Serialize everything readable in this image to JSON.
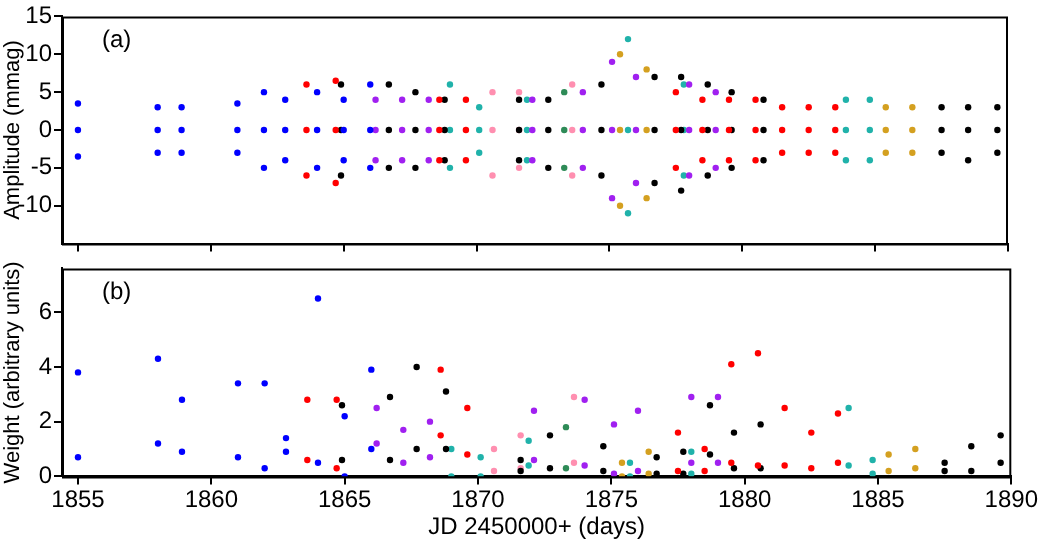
{
  "chart_data": [
    {
      "type": "scatter",
      "ylabel": "Amplitude (mmag)",
      "annotations": [
        "(a)"
      ],
      "xlim": [
        1854.4,
        1890
      ],
      "xticks": [
        1855,
        1860,
        1865,
        1870,
        1875,
        1880,
        1885,
        1890
      ],
      "ylim": [
        -15,
        15
      ],
      "yticks": [
        -10,
        -5,
        0,
        5,
        10,
        15
      ],
      "tick_labels": "y",
      "grid": false,
      "legend": false,
      "series": [
        {
          "color": "#0000ff",
          "x": [
            1855.0,
            1855.0,
            1855.0,
            1858.0,
            1858.0,
            1858.0,
            1858.9,
            1858.9,
            1858.9,
            1861.0,
            1861.0,
            1861.0,
            1862.0,
            1862.0,
            1862.0,
            1862.8,
            1862.8,
            1862.8,
            1864.0,
            1864.0,
            1864.0,
            1865.0,
            1865.0,
            1865.0,
            1866.0,
            1866.0,
            1866.0
          ],
          "values": [
            3.5,
            0,
            -3.5,
            3,
            0,
            -3,
            3,
            0,
            -3,
            3.5,
            0,
            -3,
            5,
            0,
            -5,
            4,
            0,
            -4,
            5,
            0,
            -5,
            4,
            0,
            -4,
            6,
            0,
            -5
          ]
        },
        {
          "color": "#ff0000",
          "x": [
            1863.6,
            1863.6,
            1863.6,
            1864.7,
            1864.7,
            1864.7,
            1868.6,
            1868.6,
            1868.6,
            1869.6,
            1869.6,
            1869.6,
            1877.5,
            1877.5,
            1877.5,
            1878.5,
            1878.5,
            1878.5,
            1879.5,
            1879.5,
            1879.5,
            1880.5,
            1880.5,
            1880.5,
            1881.5,
            1881.5,
            1881.5,
            1882.5,
            1882.5,
            1882.5,
            1883.5,
            1883.5,
            1883.5
          ],
          "values": [
            6,
            0,
            -6,
            6.5,
            0,
            -7,
            4,
            0,
            -4,
            4,
            0,
            -4,
            5,
            0,
            -5,
            4,
            0,
            -4,
            4,
            0,
            -4,
            4,
            0,
            -4,
            3,
            0,
            -3,
            3,
            0,
            -3,
            3,
            0,
            -3
          ]
        },
        {
          "color": "#000000",
          "x": [
            1864.9,
            1864.9,
            1864.9,
            1866.7,
            1866.7,
            1866.7,
            1867.7,
            1867.7,
            1867.7,
            1868.8,
            1868.8,
            1868.8,
            1871.6,
            1871.6,
            1871.6,
            1872.7,
            1872.7,
            1872.7,
            1874.7,
            1874.7,
            1874.7,
            1876.7,
            1876.7,
            1876.7,
            1877.7,
            1877.7,
            1877.7,
            1878.7,
            1878.7,
            1878.7,
            1879.6,
            1879.6,
            1879.6,
            1880.8,
            1880.8,
            1880.8,
            1887.5,
            1887.5,
            1887.5,
            1888.5,
            1888.5,
            1888.5,
            1889.6,
            1889.6,
            1889.6
          ],
          "values": [
            6,
            0,
            -6,
            6,
            0,
            -5,
            5,
            0,
            -5,
            4,
            0,
            -4,
            4,
            0,
            -4,
            4,
            0,
            -5,
            6,
            0,
            -6,
            7,
            0,
            -7,
            7,
            0,
            -8,
            6,
            0,
            -6,
            5,
            0,
            -5,
            4,
            0,
            -4,
            3,
            0,
            -3,
            3,
            0,
            -4,
            3,
            0,
            -3
          ]
        },
        {
          "color": "#a020f0",
          "x": [
            1866.2,
            1866.2,
            1866.2,
            1867.2,
            1867.2,
            1867.2,
            1868.2,
            1868.2,
            1868.2,
            1872.1,
            1872.1,
            1872.1,
            1874.0,
            1874.0,
            1874.0,
            1875.1,
            1875.1,
            1875.1,
            1876.0,
            1876.0,
            1876.0,
            1878.0,
            1878.0,
            1878.0,
            1879.0,
            1879.0,
            1879.0
          ],
          "values": [
            4,
            0,
            -4,
            4,
            0,
            -4,
            4,
            0,
            -4,
            4,
            0,
            -4,
            5,
            0,
            -5,
            9,
            0,
            -9,
            7,
            0,
            -7,
            6,
            0,
            -6,
            5,
            0,
            -5
          ]
        },
        {
          "color": "#20b2aa",
          "x": [
            1869.0,
            1869.0,
            1869.0,
            1870.1,
            1870.1,
            1870.1,
            1871.9,
            1871.9,
            1871.9,
            1875.7,
            1875.7,
            1875.7,
            1877.8,
            1877.8,
            1877.8,
            1883.9,
            1883.9,
            1883.9,
            1884.8,
            1884.8,
            1884.8
          ],
          "values": [
            6,
            0,
            -5,
            3,
            0,
            -3,
            4,
            0,
            -4,
            12,
            0,
            -11,
            6,
            0,
            -6,
            4,
            0,
            -4,
            4,
            0,
            -4
          ]
        },
        {
          "color": "#ff8fb0",
          "x": [
            1870.6,
            1870.6,
            1870.6,
            1871.6,
            1871.6,
            1871.6,
            1873.6,
            1873.6,
            1873.6
          ],
          "values": [
            5,
            0,
            -6,
            5,
            0,
            -5,
            6,
            0,
            -6
          ]
        },
        {
          "color": "#2e8b57",
          "x": [
            1873.3,
            1873.3,
            1873.3
          ],
          "values": [
            5,
            0,
            -5
          ]
        },
        {
          "color": "#d4a020",
          "x": [
            1875.4,
            1875.4,
            1875.4,
            1876.4,
            1876.4,
            1876.4,
            1885.4,
            1885.4,
            1885.4,
            1886.4,
            1886.4,
            1886.4
          ],
          "values": [
            10,
            0,
            -10,
            8,
            0,
            -9,
            3,
            0,
            -3,
            3,
            0,
            -3
          ]
        }
      ]
    },
    {
      "type": "scatter",
      "xlabel": "JD 2450000+ (days)",
      "ylabel": "Weight (arbitrary units)",
      "annotations": [
        "(b)"
      ],
      "xlim": [
        1854.4,
        1890
      ],
      "xticks": [
        1855,
        1860,
        1865,
        1870,
        1875,
        1880,
        1885,
        1890
      ],
      "ylim": [
        0,
        7.6
      ],
      "yticks": [
        0,
        2,
        4,
        6
      ],
      "grid": false,
      "legend": false,
      "series": [
        {
          "color": "#0000ff",
          "x": [
            1855.0,
            1855.0,
            1858.0,
            1858.0,
            1858.9,
            1858.9,
            1861.0,
            1861.0,
            1862.0,
            1862.0,
            1862.8,
            1862.8,
            1864.0,
            1864.0,
            1865.0,
            1865.0,
            1866.0,
            1866.0
          ],
          "values": [
            3.8,
            0.7,
            4.3,
            1.2,
            2.8,
            0.9,
            3.4,
            0.7,
            3.4,
            0.3,
            1.4,
            0.9,
            6.5,
            0.5,
            2.2,
            0,
            3.9,
            1.0
          ]
        },
        {
          "color": "#ff0000",
          "x": [
            1863.6,
            1863.6,
            1864.7,
            1864.7,
            1868.6,
            1868.6,
            1869.6,
            1869.6,
            1877.5,
            1877.5,
            1878.5,
            1878.5,
            1879.5,
            1879.5,
            1880.5,
            1880.5,
            1881.5,
            1881.5,
            1882.5,
            1882.5,
            1883.5,
            1883.5
          ],
          "values": [
            2.8,
            0.6,
            2.8,
            0.3,
            3.9,
            1.5,
            2.5,
            0.8,
            1.6,
            0.2,
            1.0,
            0.2,
            4.1,
            0.5,
            4.5,
            0.4,
            2.5,
            0.4,
            1.6,
            0.3,
            2.3,
            0.5
          ]
        },
        {
          "color": "#000000",
          "x": [
            1864.9,
            1864.9,
            1866.7,
            1866.7,
            1867.7,
            1867.7,
            1868.8,
            1868.8,
            1871.6,
            1871.6,
            1872.7,
            1872.7,
            1874.7,
            1874.7,
            1876.7,
            1876.7,
            1877.7,
            1877.7,
            1878.7,
            1878.7,
            1879.6,
            1879.6,
            1880.6,
            1880.6,
            1887.5,
            1887.5,
            1888.5,
            1888.5,
            1889.6,
            1889.6
          ],
          "values": [
            2.6,
            0.6,
            2.9,
            0.6,
            4.0,
            1.0,
            3.1,
            1.0,
            0.6,
            0.2,
            1.5,
            0.3,
            1.1,
            0.2,
            0.7,
            0.1,
            0.9,
            0.1,
            2.6,
            0.8,
            1.6,
            0.3,
            1.9,
            0.3,
            0.5,
            0.2,
            1.1,
            0.2,
            1.5,
            0.5
          ]
        },
        {
          "color": "#a020f0",
          "x": [
            1866.2,
            1866.2,
            1867.2,
            1867.2,
            1868.2,
            1868.2,
            1872.1,
            1872.1,
            1874.0,
            1874.0,
            1875.1,
            1875.1,
            1876.0,
            1876.0,
            1878.0,
            1878.0,
            1879.0,
            1879.0
          ],
          "values": [
            2.5,
            1.2,
            1.7,
            0.5,
            2.0,
            0.7,
            2.4,
            0.6,
            2.8,
            0.4,
            1.9,
            0.1,
            2.4,
            0.2,
            2.9,
            0.5,
            2.9,
            0.5
          ]
        },
        {
          "color": "#20b2aa",
          "x": [
            1869.0,
            1869.0,
            1870.1,
            1870.1,
            1871.9,
            1871.9,
            1875.7,
            1875.7,
            1878.0,
            1878.0,
            1883.9,
            1883.9,
            1884.8,
            1884.8
          ],
          "values": [
            1.0,
            0,
            0.7,
            0,
            1.3,
            0.4,
            0.5,
            0,
            0.9,
            0.1,
            2.5,
            0.4,
            0.6,
            0.1
          ]
        },
        {
          "color": "#ff8fb0",
          "x": [
            1870.6,
            1870.6,
            1871.6,
            1871.6,
            1873.6,
            1873.6
          ],
          "values": [
            1.0,
            0.2,
            1.5,
            0.3,
            2.9,
            0.5
          ]
        },
        {
          "color": "#2e8b57",
          "x": [
            1873.3,
            1873.3
          ],
          "values": [
            1.8,
            0.3
          ]
        },
        {
          "color": "#d4a020",
          "x": [
            1875.4,
            1875.4,
            1876.4,
            1876.4,
            1885.4,
            1885.4,
            1886.4,
            1886.4
          ],
          "values": [
            0.5,
            0,
            0.9,
            0.1,
            0.8,
            0.2,
            1.0,
            0.3
          ]
        }
      ]
    }
  ]
}
